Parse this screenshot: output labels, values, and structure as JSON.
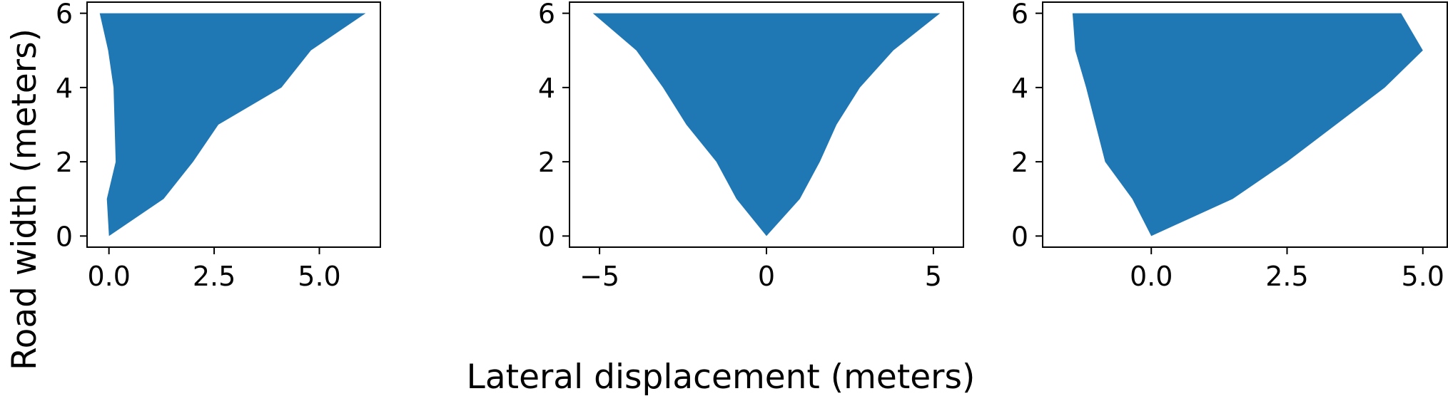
{
  "figure": {
    "ylabel": "Road width (meters)",
    "xlabel": "Lateral displacement (meters)"
  },
  "chart_data": [
    {
      "type": "area",
      "title": "",
      "fill_color": "#1f77b4",
      "xlim": [
        -0.52,
        6.45
      ],
      "ylim": [
        -0.3,
        6.3
      ],
      "xticks": [
        0.0,
        2.5,
        5.0
      ],
      "xtick_labels": [
        "0.0",
        "2.5",
        "5.0"
      ],
      "yticks": [
        0,
        2,
        4,
        6
      ],
      "ytick_labels": [
        "0",
        "2",
        "4",
        "6"
      ],
      "series": [
        {
          "points": [
            [
              0,
              0
            ],
            [
              1.3,
              1
            ],
            [
              2.0,
              2
            ],
            [
              2.6,
              3
            ],
            [
              4.1,
              4
            ],
            [
              4.8,
              5
            ],
            [
              6.1,
              6
            ],
            [
              -0.22,
              6
            ],
            [
              -0.02,
              5
            ],
            [
              0.11,
              4
            ],
            [
              0.16,
              2
            ],
            [
              -0.05,
              1
            ],
            [
              0,
              0
            ]
          ]
        }
      ]
    },
    {
      "type": "area",
      "title": "",
      "fill_color": "#1f77b4",
      "xlim": [
        -5.9,
        5.9
      ],
      "ylim": [
        -0.3,
        6.3
      ],
      "xticks": [
        -5,
        0,
        5
      ],
      "xtick_labels": [
        "−5",
        "0",
        "5"
      ],
      "yticks": [
        0,
        2,
        4,
        6
      ],
      "ytick_labels": [
        "0",
        "2",
        "4",
        "6"
      ],
      "series": [
        {
          "points": [
            [
              0,
              0
            ],
            [
              1.0,
              1
            ],
            [
              1.6,
              2
            ],
            [
              2.1,
              3
            ],
            [
              2.8,
              4
            ],
            [
              3.8,
              5
            ],
            [
              5.2,
              6
            ],
            [
              -5.2,
              6
            ],
            [
              -3.9,
              5
            ],
            [
              -3.1,
              4
            ],
            [
              -2.4,
              3
            ],
            [
              -1.5,
              2
            ],
            [
              -0.9,
              1
            ],
            [
              0,
              0
            ]
          ]
        }
      ]
    },
    {
      "type": "area",
      "title": "",
      "fill_color": "#1f77b4",
      "xlim": [
        -2.0,
        5.45
      ],
      "ylim": [
        -0.3,
        6.3
      ],
      "xticks": [
        0.0,
        2.5,
        5.0
      ],
      "xtick_labels": [
        "0.0",
        "2.5",
        "5.0"
      ],
      "yticks": [
        0,
        2,
        4,
        6
      ],
      "ytick_labels": [
        "0",
        "2",
        "4",
        "6"
      ],
      "series": [
        {
          "points": [
            [
              0,
              0
            ],
            [
              1.5,
              1
            ],
            [
              2.5,
              2
            ],
            [
              3.4,
              3
            ],
            [
              4.3,
              4
            ],
            [
              5.0,
              5
            ],
            [
              4.6,
              6
            ],
            [
              -1.45,
              6
            ],
            [
              -1.4,
              5
            ],
            [
              -1.2,
              4
            ],
            [
              -0.85,
              2
            ],
            [
              -0.35,
              1
            ],
            [
              0,
              0
            ]
          ]
        }
      ]
    }
  ]
}
